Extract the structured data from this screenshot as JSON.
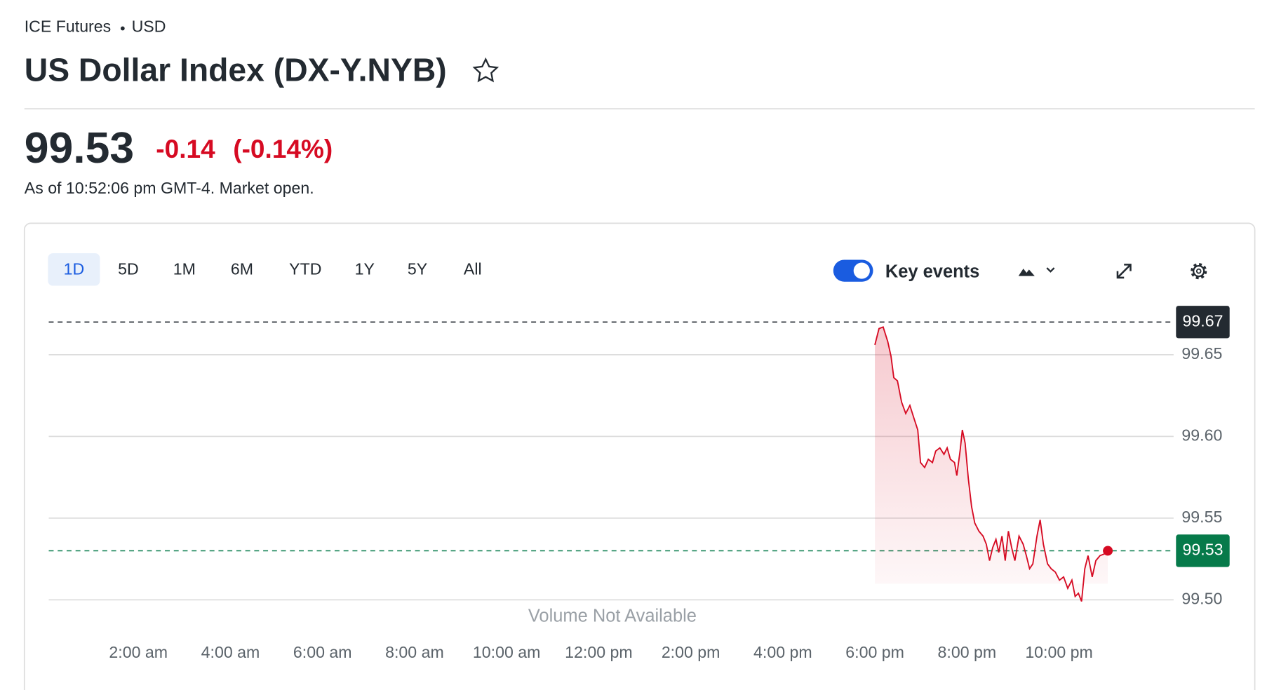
{
  "header": {
    "exchange": "ICE Futures",
    "currency": "USD",
    "title": "US Dollar Index (DX-Y.NYB)"
  },
  "quote": {
    "price": "99.53",
    "change": "-0.14",
    "change_percent": "(-0.14%)",
    "as_of": "As of 10:52:06 pm GMT-4. Market open."
  },
  "range_buttons": [
    "1D",
    "5D",
    "1M",
    "6M",
    "YTD",
    "1Y",
    "5Y",
    "All"
  ],
  "selected_range": "1D",
  "key_events_label": "Key events",
  "chart_data": {
    "type": "line",
    "color": "#d60a22",
    "annotation": "Volume Not Available",
    "x": [
      18.0,
      18.09,
      18.18,
      18.28,
      18.35,
      18.41,
      18.49,
      18.58,
      18.67,
      18.76,
      18.85,
      18.93,
      18.99,
      19.08,
      19.16,
      19.25,
      19.32,
      19.41,
      19.5,
      19.57,
      19.64,
      19.73,
      19.78,
      19.85,
      19.9,
      19.96,
      20.03,
      20.1,
      20.17,
      20.26,
      20.35,
      20.42,
      20.49,
      20.56,
      20.63,
      20.69,
      20.76,
      20.83,
      20.9,
      20.97,
      21.04,
      21.13,
      21.22,
      21.29,
      21.36,
      21.43,
      21.52,
      21.59,
      21.66,
      21.75,
      21.83,
      21.92,
      22.01,
      22.1,
      22.19,
      22.28,
      22.35,
      22.42,
      22.49,
      22.56,
      22.63,
      22.72,
      22.8,
      22.89,
      22.98,
      23.06
    ],
    "values": [
      99.656,
      99.666,
      99.667,
      99.658,
      99.649,
      99.636,
      99.634,
      99.621,
      99.614,
      99.619,
      99.611,
      99.604,
      99.584,
      99.581,
      99.586,
      99.584,
      99.591,
      99.593,
      99.589,
      99.593,
      99.586,
      99.584,
      99.576,
      99.591,
      99.604,
      99.596,
      99.574,
      99.557,
      99.547,
      99.542,
      99.539,
      99.534,
      99.524,
      99.532,
      99.537,
      99.529,
      99.539,
      99.524,
      99.542,
      99.532,
      99.524,
      99.539,
      99.534,
      99.527,
      99.519,
      99.522,
      99.539,
      99.549,
      99.534,
      99.522,
      99.519,
      99.517,
      99.512,
      99.514,
      99.507,
      99.512,
      99.502,
      99.504,
      99.499,
      99.519,
      99.527,
      99.514,
      99.524,
      99.527,
      99.528,
      99.53
    ],
    "xlim": [
      0,
      24.4
    ],
    "xticks": [
      {
        "value": 2,
        "label": "2:00 am"
      },
      {
        "value": 4,
        "label": "4:00 am"
      },
      {
        "value": 6,
        "label": "6:00 am"
      },
      {
        "value": 8,
        "label": "8:00 am"
      },
      {
        "value": 10,
        "label": "10:00 am"
      },
      {
        "value": 12,
        "label": "12:00 pm"
      },
      {
        "value": 14,
        "label": "2:00 pm"
      },
      {
        "value": 16,
        "label": "4:00 pm"
      },
      {
        "value": 18,
        "label": "6:00 pm"
      },
      {
        "value": 20,
        "label": "8:00 pm"
      },
      {
        "value": 22,
        "label": "10:00 pm"
      }
    ],
    "ylim": [
      99.49,
      99.68
    ],
    "yticks": [
      {
        "value": 99.5,
        "label": "99.50"
      },
      99.55,
      {
        "value": 99.6,
        "label": "99.60"
      },
      99.65
    ],
    "grid": true,
    "reference_lines": [
      {
        "value": 99.67,
        "color": "#232a31"
      },
      {
        "value": 99.53,
        "color": "#067a4a"
      }
    ]
  }
}
